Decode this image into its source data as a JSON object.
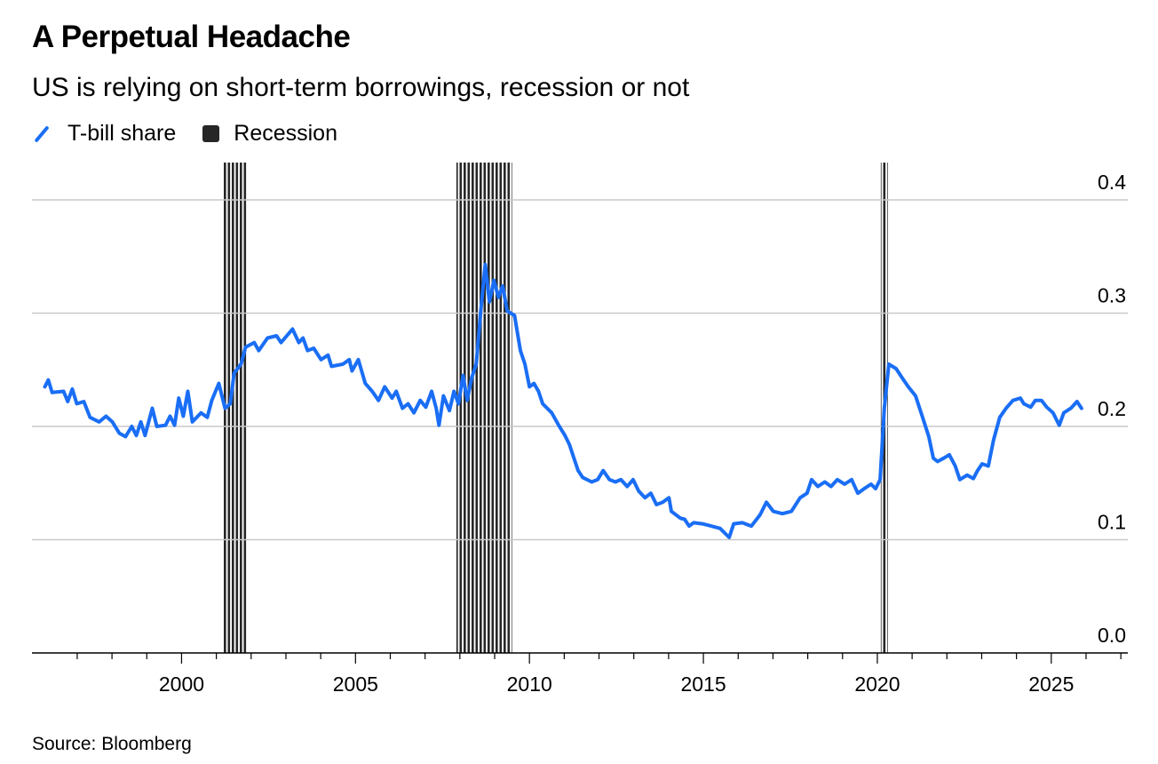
{
  "header": {
    "title": "A Perpetual Headache",
    "subtitle": "US is relying on short-term borrowings, recession or not"
  },
  "legend": {
    "series_label": "T-bill share",
    "recession_label": "Recession"
  },
  "source": "Source: Bloomberg",
  "colors": {
    "line": "#1a6ef5",
    "recession": "#262626",
    "grid": "#c8c8c8"
  },
  "chart_data": {
    "type": "line",
    "title": "A Perpetual Headache",
    "subtitle": "US is relying on short-term borrowings, recession or not",
    "xlabel": "",
    "ylabel": "",
    "xlim": [
      1995.7,
      2027.2
    ],
    "ylim": [
      0,
      0.4
    ],
    "grid": true,
    "legend": "top-left",
    "x_ticks": [
      2000,
      2005,
      2010,
      2015,
      2020,
      2025
    ],
    "x_tick_labels": [
      "2000",
      "2005",
      "2010",
      "2015",
      "2020",
      "2025"
    ],
    "y_ticks": [
      0,
      0.1,
      0.2,
      0.3,
      0.4
    ],
    "y_tick_labels": [
      "0.0",
      "0.1",
      "0.2",
      "0.3",
      "0.4"
    ],
    "recessions": [
      [
        2001.2,
        2001.9
      ],
      [
        2007.9,
        2009.5
      ],
      [
        2020.1,
        2020.3
      ]
    ],
    "series": [
      {
        "name": "T-bill share",
        "x": [
          1996.07,
          1996.17,
          1996.28,
          1996.61,
          1996.73,
          1996.86,
          1996.99,
          1997.19,
          1997.37,
          1997.63,
          1997.83,
          1998.01,
          1998.21,
          1998.39,
          1998.57,
          1998.7,
          1998.83,
          1998.95,
          1999.16,
          1999.29,
          1999.54,
          1999.67,
          1999.8,
          1999.92,
          2000.05,
          2000.18,
          2000.31,
          2000.56,
          2000.74,
          2000.87,
          2001.07,
          2001.25,
          2001.4,
          2001.51,
          2001.71,
          2001.84,
          2002.09,
          2002.22,
          2002.47,
          2002.73,
          2002.86,
          2003.19,
          2003.37,
          2003.49,
          2003.62,
          2003.8,
          2004.01,
          2004.21,
          2004.31,
          2004.64,
          2004.82,
          2004.9,
          2005.08,
          2005.28,
          2005.48,
          2005.66,
          2005.84,
          2006.05,
          2006.17,
          2006.35,
          2006.51,
          2006.68,
          2006.86,
          2007.02,
          2007.19,
          2007.32,
          2007.4,
          2007.53,
          2007.7,
          2007.83,
          2007.96,
          2008.09,
          2008.21,
          2008.34,
          2008.47,
          2008.6,
          2008.73,
          2008.85,
          2008.98,
          2009.11,
          2009.23,
          2009.36,
          2009.57,
          2009.74,
          2009.87,
          2010.0,
          2010.13,
          2010.26,
          2010.38,
          2010.64,
          2010.84,
          2011.02,
          2011.15,
          2011.28,
          2011.4,
          2011.53,
          2011.79,
          2011.96,
          2012.12,
          2012.3,
          2012.47,
          2012.63,
          2012.81,
          2012.98,
          2013.14,
          2013.32,
          2013.49,
          2013.65,
          2013.83,
          2014.01,
          2014.08,
          2014.34,
          2014.46,
          2014.59,
          2014.72,
          2014.97,
          2015.23,
          2015.48,
          2015.74,
          2015.87,
          2016.12,
          2016.38,
          2016.63,
          2016.81,
          2017.01,
          2017.27,
          2017.53,
          2017.78,
          2017.98,
          2018.11,
          2018.29,
          2018.49,
          2018.67,
          2018.85,
          2019.06,
          2019.26,
          2019.44,
          2019.62,
          2019.82,
          2019.95,
          2020.08,
          2020.2,
          2020.33,
          2020.54,
          2020.71,
          2020.89,
          2021.1,
          2021.3,
          2021.48,
          2021.61,
          2021.73,
          2021.91,
          2022.07,
          2022.24,
          2022.37,
          2022.58,
          2022.76,
          2022.88,
          2023.01,
          2023.19,
          2023.34,
          2023.52,
          2023.7,
          2023.9,
          2024.11,
          2024.21,
          2024.41,
          2024.54,
          2024.72,
          2024.87,
          2025.05,
          2025.23,
          2025.36,
          2025.56,
          2025.74,
          2025.87
        ],
        "values": [
          0.235,
          0.241,
          0.23,
          0.231,
          0.222,
          0.233,
          0.22,
          0.222,
          0.208,
          0.204,
          0.209,
          0.204,
          0.194,
          0.191,
          0.2,
          0.192,
          0.204,
          0.192,
          0.216,
          0.2,
          0.201,
          0.209,
          0.201,
          0.225,
          0.209,
          0.231,
          0.204,
          0.212,
          0.208,
          0.223,
          0.238,
          0.216,
          0.22,
          0.247,
          0.255,
          0.27,
          0.274,
          0.267,
          0.278,
          0.28,
          0.274,
          0.286,
          0.274,
          0.278,
          0.267,
          0.269,
          0.259,
          0.263,
          0.253,
          0.255,
          0.259,
          0.249,
          0.259,
          0.238,
          0.231,
          0.223,
          0.235,
          0.225,
          0.231,
          0.216,
          0.22,
          0.212,
          0.223,
          0.217,
          0.231,
          0.216,
          0.201,
          0.227,
          0.214,
          0.231,
          0.22,
          0.245,
          0.223,
          0.243,
          0.255,
          0.302,
          0.343,
          0.31,
          0.329,
          0.314,
          0.324,
          0.302,
          0.298,
          0.267,
          0.255,
          0.235,
          0.238,
          0.231,
          0.22,
          0.212,
          0.201,
          0.192,
          0.184,
          0.172,
          0.161,
          0.155,
          0.151,
          0.153,
          0.161,
          0.153,
          0.151,
          0.153,
          0.147,
          0.153,
          0.143,
          0.137,
          0.141,
          0.131,
          0.133,
          0.137,
          0.125,
          0.119,
          0.118,
          0.112,
          0.115,
          0.114,
          0.112,
          0.11,
          0.102,
          0.114,
          0.115,
          0.112,
          0.122,
          0.133,
          0.125,
          0.123,
          0.125,
          0.137,
          0.141,
          0.153,
          0.147,
          0.151,
          0.147,
          0.153,
          0.149,
          0.153,
          0.141,
          0.145,
          0.149,
          0.145,
          0.153,
          0.216,
          0.255,
          0.251,
          0.243,
          0.235,
          0.227,
          0.208,
          0.191,
          0.172,
          0.169,
          0.172,
          0.175,
          0.165,
          0.153,
          0.157,
          0.154,
          0.161,
          0.167,
          0.165,
          0.188,
          0.208,
          0.216,
          0.223,
          0.225,
          0.22,
          0.217,
          0.223,
          0.223,
          0.217,
          0.212,
          0.201,
          0.212,
          0.216,
          0.222,
          0.216
        ]
      }
    ]
  }
}
